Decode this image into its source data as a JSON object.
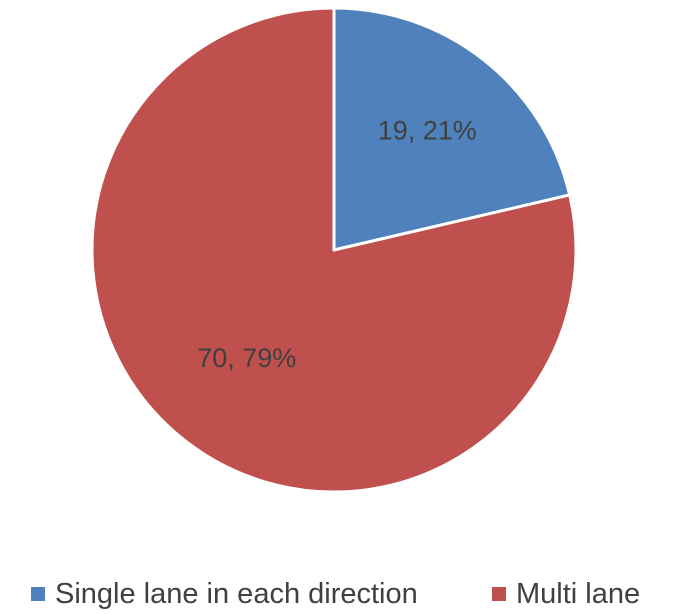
{
  "chart_data": {
    "type": "pie",
    "categories": [
      "Single lane in each direction",
      "Multi lane"
    ],
    "values": [
      19,
      70
    ],
    "percentages": [
      "21%",
      "79%"
    ],
    "data_labels": [
      "19, 21%",
      "70, 79%"
    ],
    "colors": [
      "#4F81BD",
      "#C0504D"
    ],
    "legend_position": "bottom",
    "start_angle": "12 o'clock, clockwise"
  },
  "legend": {
    "items": [
      {
        "label": "Single lane in each direction",
        "color": "#4F81BD"
      },
      {
        "label": "Multi lane",
        "color": "#C0504D"
      }
    ]
  }
}
